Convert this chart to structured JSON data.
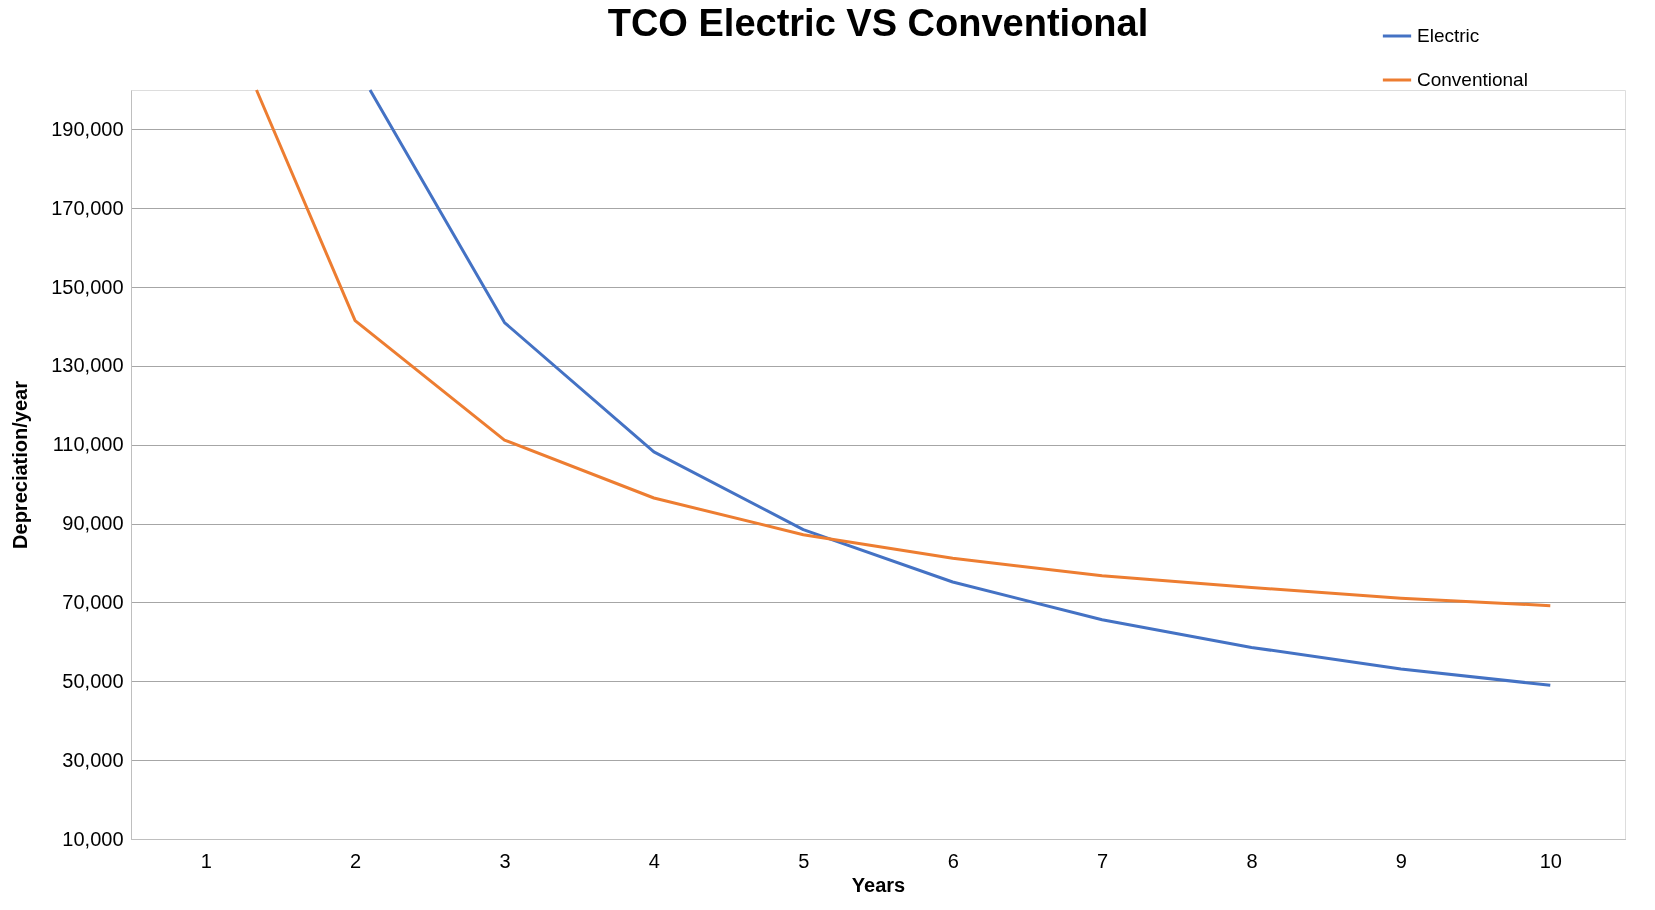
{
  "chart_data": {
    "type": "line",
    "title": "TCO Electric VS Conventional",
    "xlabel": "Years",
    "ylabel": "Depreciation/year",
    "series": [
      {
        "name": "Electric",
        "color": "#4472c4",
        "x": [
          2.1,
          3,
          4,
          5,
          6,
          7,
          8,
          9,
          10
        ],
        "values": [
          200000,
          141000,
          108200,
          88500,
          75200,
          65600,
          58600,
          53100,
          49000
        ]
      },
      {
        "name": "Conventional",
        "color": "#ed7d31",
        "x": [
          1.34,
          2,
          3,
          4,
          5,
          6,
          7,
          8,
          9,
          10
        ],
        "values": [
          200000,
          141500,
          111200,
          96500,
          87200,
          81200,
          76800,
          73800,
          71100,
          69200
        ]
      }
    ],
    "xlim": [
      0.5,
      10.5
    ],
    "xticks": [
      1,
      2,
      3,
      4,
      5,
      6,
      7,
      8,
      9,
      10
    ],
    "ylim": [
      10000,
      200000
    ],
    "yticks": [
      {
        "value": 10000,
        "label": "10,000"
      },
      {
        "value": 30000,
        "label": "30,000"
      },
      {
        "value": 50000,
        "label": "50,000"
      },
      {
        "value": 70000,
        "label": "70,000"
      },
      {
        "value": 90000,
        "label": "90,000"
      },
      {
        "value": 110000,
        "label": "110,000"
      },
      {
        "value": 130000,
        "label": "130,000"
      },
      {
        "value": 150000,
        "label": "150,000"
      },
      {
        "value": 170000,
        "label": "170,000"
      },
      {
        "value": 190000,
        "label": "190,000"
      }
    ],
    "grid": "y",
    "legend": "top right",
    "marker": "none",
    "line_style": "solid"
  }
}
